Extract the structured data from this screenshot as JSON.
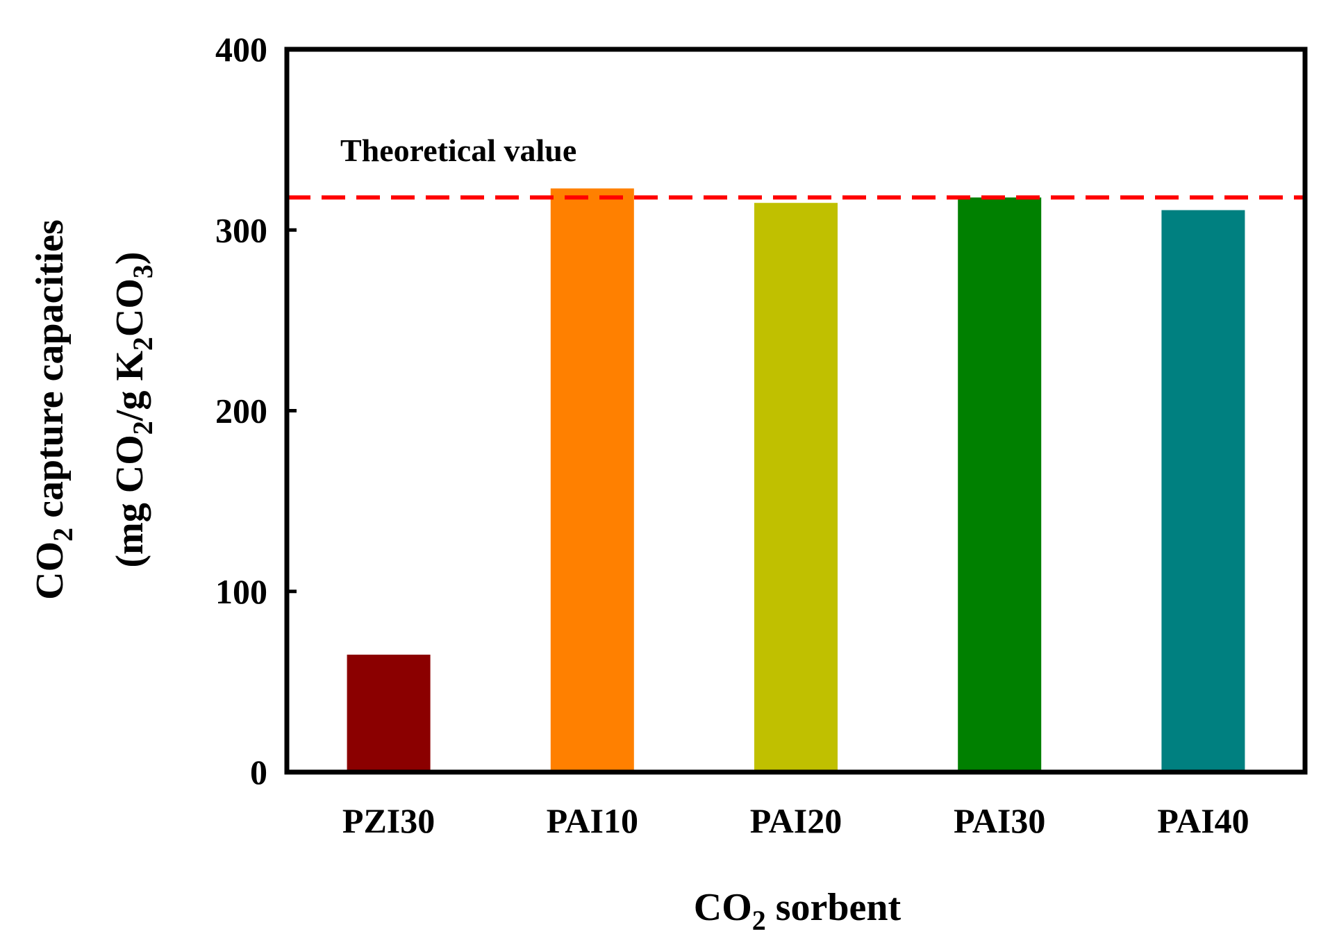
{
  "chart_data": {
    "type": "bar",
    "categories": [
      "PZI30",
      "PAI10",
      "PAI20",
      "PAI30",
      "PAI40"
    ],
    "values": [
      65,
      323,
      315,
      318,
      311
    ],
    "colors": [
      "#8b0000",
      "#ff8000",
      "#c0c000",
      "#008000",
      "#008080"
    ],
    "ylim": [
      0,
      400
    ],
    "yticks": [
      0,
      100,
      200,
      300,
      400
    ],
    "xlabel": {
      "main": "CO",
      "sub": "2",
      "rest": " sorbent"
    },
    "ylabel": {
      "line1": {
        "main": "CO",
        "sub": "2",
        "rest": " capture capacities"
      },
      "line2": {
        "p1": "(mg CO",
        "s1": "2",
        "p2": "/g K",
        "s2": "2",
        "p3": "CO",
        "s3": "3",
        "p4": ")"
      }
    },
    "reference_line": {
      "value": 318,
      "label": "Theoretical value",
      "color": "#ff0000",
      "style": "dashed"
    },
    "grid": false
  }
}
